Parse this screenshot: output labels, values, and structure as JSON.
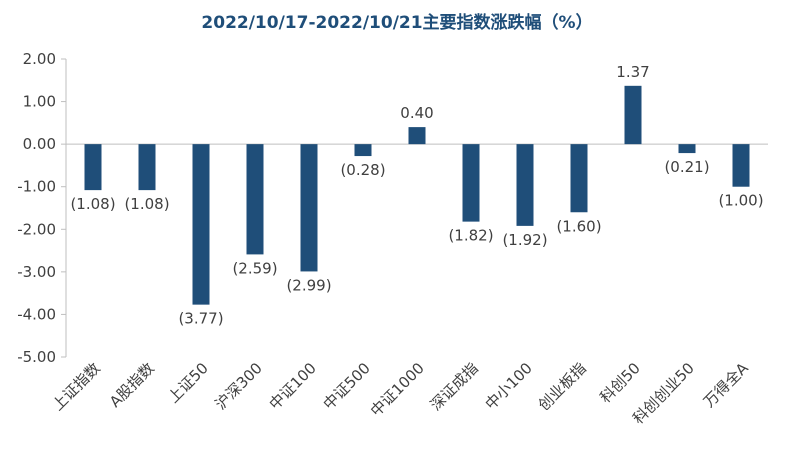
{
  "chart_data": {
    "type": "bar",
    "title": "2022/10/17-2022/10/21主要指数涨跌幅（%）",
    "xlabel": "",
    "ylabel": "",
    "categories": [
      "上证指数",
      "A股指数",
      "上证50",
      "沪深300",
      "中证100",
      "中证500",
      "中证1000",
      "深证成指",
      "中小100",
      "创业板指",
      "科创50",
      "科创创业50",
      "万得全A"
    ],
    "values": [
      -1.08,
      -1.08,
      -3.77,
      -2.59,
      -2.99,
      -0.28,
      0.4,
      -1.82,
      -1.92,
      -1.6,
      1.37,
      -0.21,
      -1.0
    ],
    "data_labels": [
      "(1.08)",
      "(1.08)",
      "(3.77)",
      "(2.59)",
      "(2.99)",
      "(0.28)",
      "0.40",
      "(1.82)",
      "(1.92)",
      "(1.60)",
      "1.37",
      "(0.21)",
      "(1.00)"
    ],
    "ylim": [
      -5.0,
      2.0
    ],
    "yticks": [
      2.0,
      1.0,
      0.0,
      -1.0,
      -2.0,
      -3.0,
      -4.0,
      -5.0
    ],
    "ytick_labels": [
      "2.00",
      "1.00",
      "0.00",
      "-1.00",
      "-2.00",
      "-3.00",
      "-4.00",
      "-5.00"
    ],
    "grid": false,
    "legend": "none",
    "bar_color": "#1f4e79"
  }
}
